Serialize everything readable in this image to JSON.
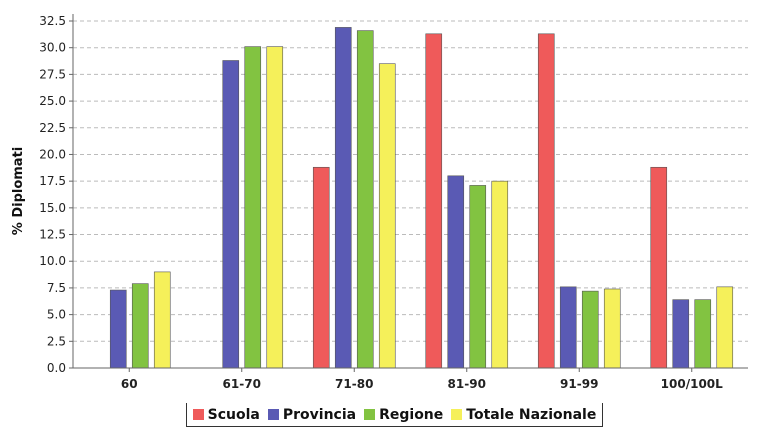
{
  "chart_data": {
    "type": "bar",
    "categories": [
      "60",
      "61-70",
      "71-80",
      "81-90",
      "91-99",
      "100/100L"
    ],
    "series": [
      {
        "name": "Scuola",
        "color": "#ef5a5a",
        "values": [
          0,
          0,
          18.8,
          31.3,
          31.3,
          18.8
        ]
      },
      {
        "name": "Provincia",
        "color": "#5a5ab4",
        "values": [
          7.3,
          28.8,
          31.9,
          18.0,
          7.6,
          6.4
        ]
      },
      {
        "name": "Regione",
        "color": "#82c341",
        "values": [
          7.9,
          30.1,
          31.6,
          17.1,
          7.2,
          6.4
        ]
      },
      {
        "name": "Totale Nazionale",
        "color": "#f5f05a",
        "values": [
          9.0,
          30.1,
          28.5,
          17.5,
          7.4,
          7.6
        ]
      }
    ],
    "ylabel": "% Diplomati",
    "xlabel": "",
    "ylim": [
      0,
      32.5
    ],
    "yticks": [
      "0.0",
      "2.5",
      "5.0",
      "7.5",
      "10.0",
      "12.5",
      "15.0",
      "17.5",
      "20.0",
      "22.5",
      "25.0",
      "27.5",
      "30.0",
      "32.5"
    ],
    "grid": true,
    "legend_position": "bottom"
  }
}
